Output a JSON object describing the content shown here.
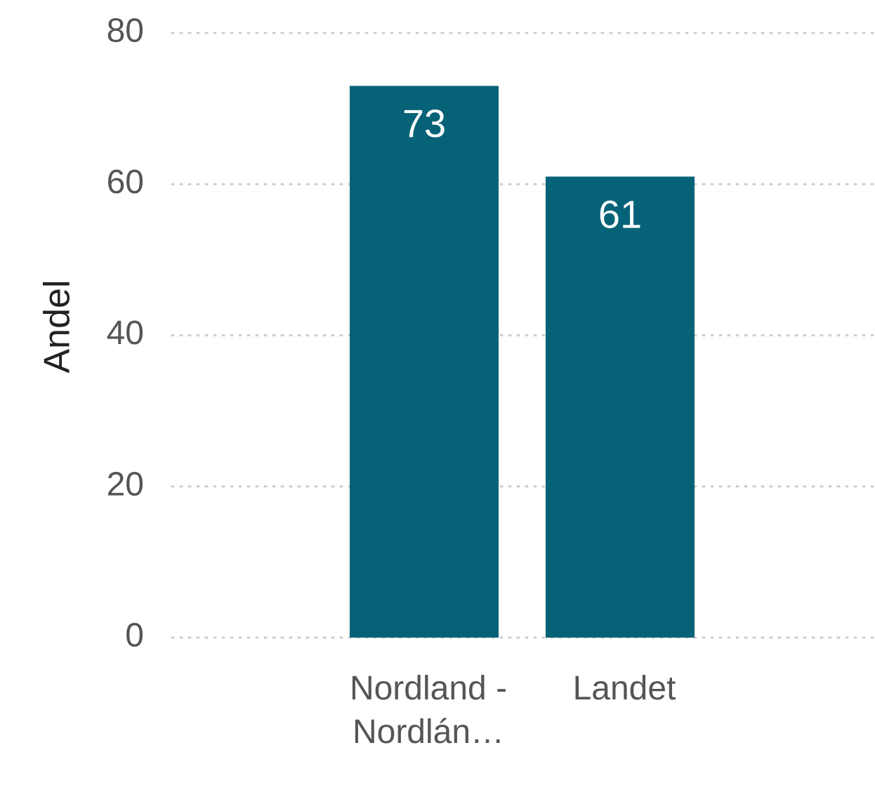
{
  "chart_data": {
    "type": "bar",
    "y_label": "Andel",
    "categories": [
      "Nordland - Nordlán…",
      "Landet"
    ],
    "values": [
      73,
      61
    ],
    "color": "#066277",
    "ylim": [
      0,
      80
    ],
    "yticks": [
      0,
      20,
      40,
      60,
      80
    ],
    "grid": true
  }
}
